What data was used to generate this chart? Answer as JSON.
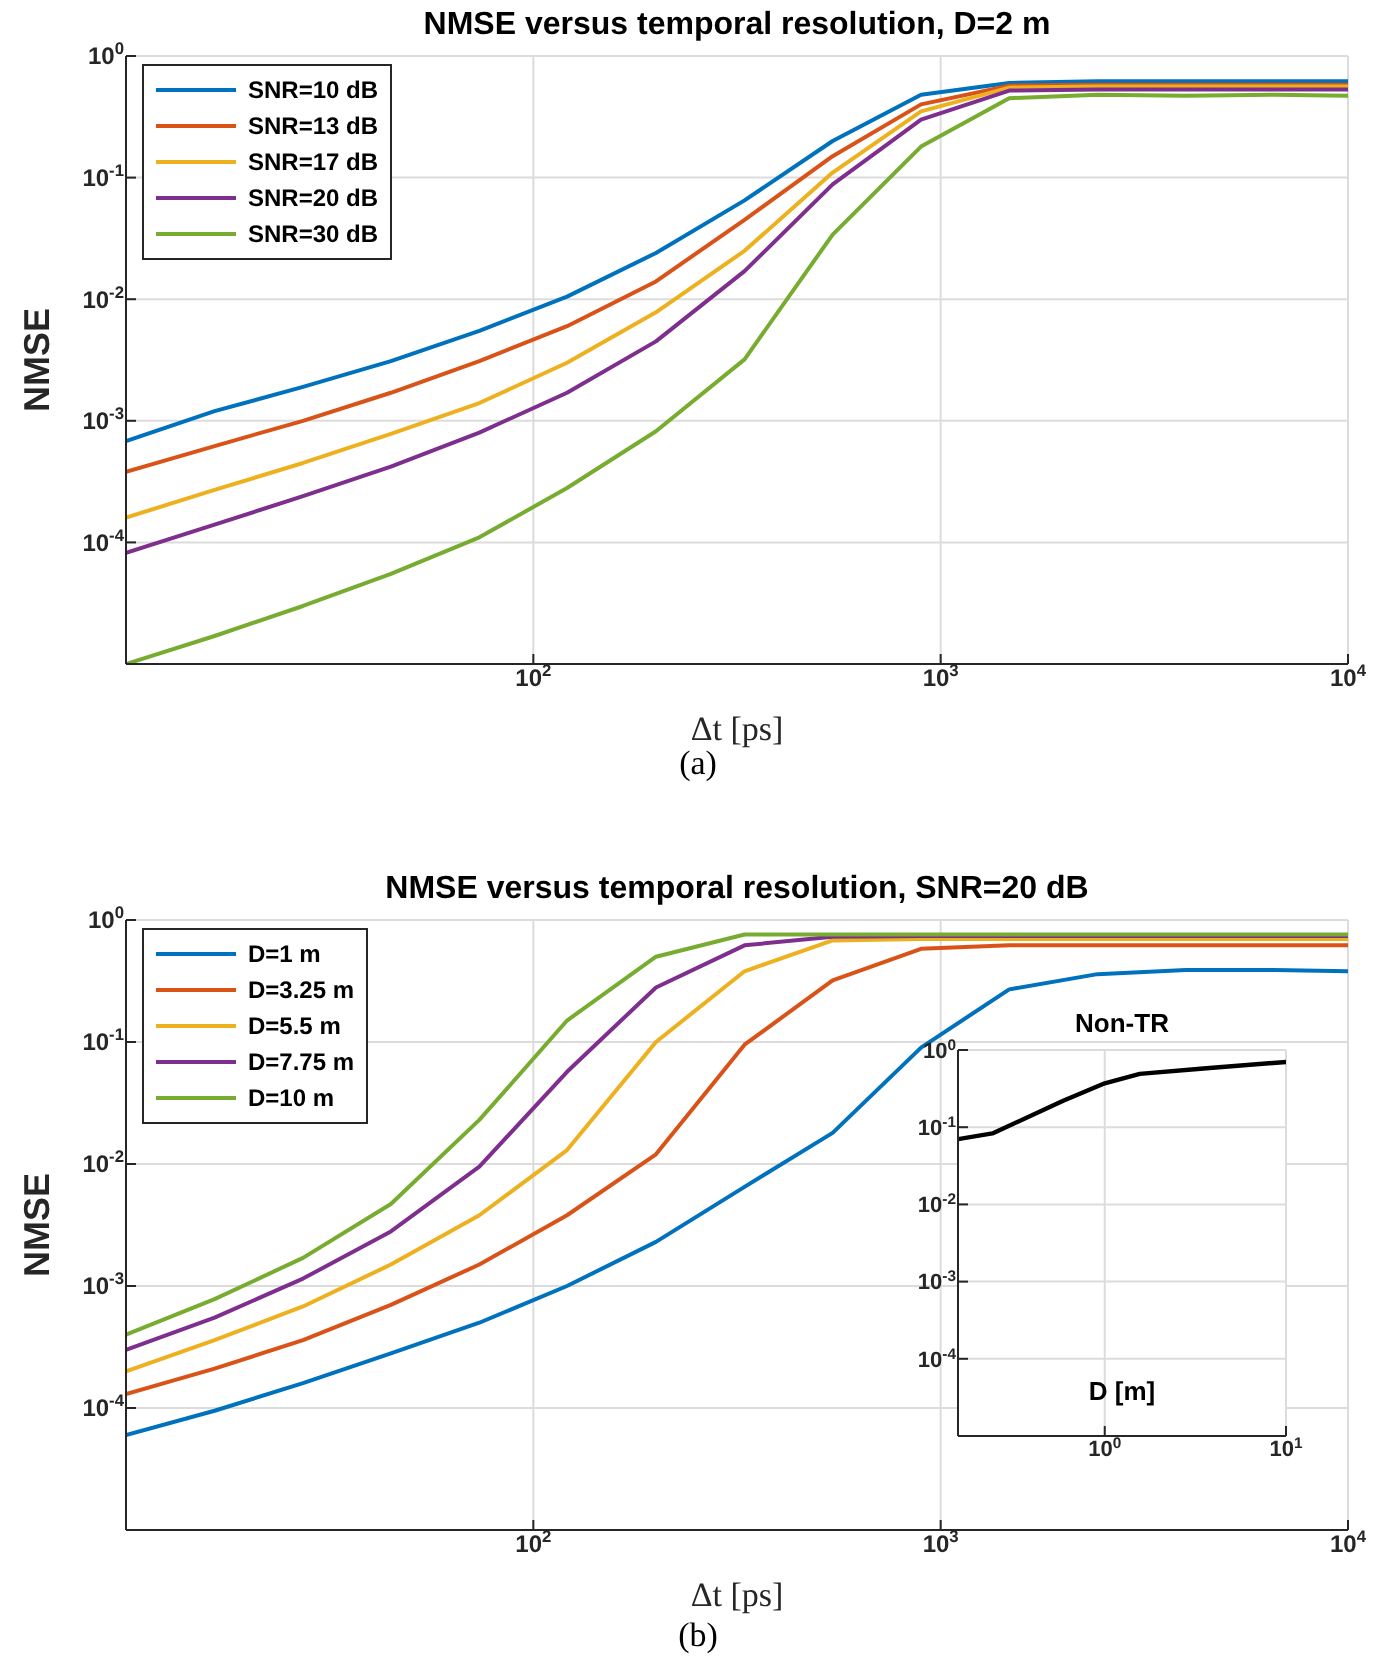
{
  "chart_data": [
    {
      "type": "line",
      "title": "NMSE versus temporal resolution, D=2 m",
      "xlabel": "Δt [ps]",
      "ylabel": "NMSE",
      "annotations": [
        "(a)"
      ],
      "log": "xy",
      "grid": true,
      "legend": "top left",
      "marker": "none",
      "x": [
        10,
        16.5,
        27.2,
        44.7,
        73.7,
        121,
        200,
        330,
        543,
        895,
        1473,
        2427,
        3998,
        6585,
        10000
      ],
      "xlim": [
        10,
        10000
      ],
      "xticks": [
        {
          "value": 100,
          "label": "10$^{2}$"
        },
        {
          "value": 1000,
          "label": "10$^{3}$"
        },
        {
          "value": 10000,
          "label": "10$^{4}$"
        }
      ],
      "ylim": [
        1e-05,
        1
      ],
      "yticks": [
        {
          "value": 1,
          "label": "10$^{0}$"
        },
        {
          "value": 0.1,
          "label": "10$^{-1}$"
        },
        {
          "value": 0.01,
          "label": "10$^{-2}$"
        },
        {
          "value": 0.001,
          "label": "10$^{-3}$"
        },
        {
          "value": 0.0001,
          "label": "10$^{-4}$"
        }
      ],
      "series": [
        {
          "name": "SNR=10 dB",
          "color": "#0072bd",
          "values": [
            0.00068,
            0.0012,
            0.0019,
            0.0031,
            0.0055,
            0.0105,
            0.024,
            0.065,
            0.2,
            0.48,
            0.6,
            0.62,
            0.62,
            0.62,
            0.62
          ]
        },
        {
          "name": "SNR=13 dB",
          "color": "#d95319",
          "values": [
            0.00038,
            0.00062,
            0.001,
            0.0017,
            0.0031,
            0.006,
            0.014,
            0.045,
            0.15,
            0.4,
            0.57,
            0.58,
            0.58,
            0.58,
            0.58
          ]
        },
        {
          "name": "SNR=17 dB",
          "color": "#edb120",
          "values": [
            0.00016,
            0.00027,
            0.00045,
            0.00078,
            0.0014,
            0.003,
            0.0078,
            0.025,
            0.11,
            0.35,
            0.55,
            0.56,
            0.56,
            0.56,
            0.56
          ]
        },
        {
          "name": "SNR=20 dB",
          "color": "#7e2f8e",
          "values": [
            8.2e-05,
            0.00014,
            0.00024,
            0.00042,
            0.0008,
            0.0017,
            0.0045,
            0.017,
            0.088,
            0.3,
            0.52,
            0.53,
            0.53,
            0.53,
            0.53
          ]
        },
        {
          "name": "SNR=30 dB",
          "color": "#77ac30",
          "values": [
            1e-05,
            1.7e-05,
            3e-05,
            5.5e-05,
            0.00011,
            0.00028,
            0.00082,
            0.0032,
            0.034,
            0.18,
            0.45,
            0.48,
            0.47,
            0.48,
            0.47
          ]
        }
      ]
    },
    {
      "type": "line",
      "title": "NMSE versus temporal resolution, SNR=20 dB",
      "xlabel": "Δt [ps]",
      "ylabel": "NMSE",
      "annotations": [
        "(b)"
      ],
      "log": "xy",
      "grid": true,
      "legend": "top left",
      "marker": "none",
      "x": [
        10,
        16.5,
        27.2,
        44.7,
        73.7,
        121,
        200,
        330,
        543,
        895,
        1473,
        2427,
        3998,
        6585,
        10000
      ],
      "xlim": [
        10,
        10000
      ],
      "xticks": [
        {
          "value": 100,
          "label": "10$^{2}$"
        },
        {
          "value": 1000,
          "label": "10$^{3}$"
        },
        {
          "value": 10000,
          "label": "10$^{4}$"
        }
      ],
      "ylim": [
        1e-05,
        1
      ],
      "yticks": [
        {
          "value": 1,
          "label": "10$^{0}$"
        },
        {
          "value": 0.1,
          "label": "10$^{-1}$"
        },
        {
          "value": 0.01,
          "label": "10$^{-2}$"
        },
        {
          "value": 0.001,
          "label": "10$^{-3}$"
        },
        {
          "value": 0.0001,
          "label": "10$^{-4}$"
        }
      ],
      "series": [
        {
          "name": "D=1 m",
          "color": "#0072bd",
          "values": [
            6e-05,
            9.5e-05,
            0.00016,
            0.00028,
            0.0005,
            0.001,
            0.0023,
            0.0065,
            0.018,
            0.09,
            0.27,
            0.36,
            0.39,
            0.39,
            0.38
          ]
        },
        {
          "name": "D=3.25 m",
          "color": "#d95319",
          "values": [
            0.00013,
            0.00021,
            0.00036,
            0.0007,
            0.0015,
            0.0038,
            0.012,
            0.095,
            0.32,
            0.58,
            0.62,
            0.62,
            0.62,
            0.62,
            0.62
          ]
        },
        {
          "name": "D=5.5 m",
          "color": "#edb120",
          "values": [
            0.0002,
            0.00036,
            0.00068,
            0.0015,
            0.0038,
            0.013,
            0.1,
            0.38,
            0.68,
            0.7,
            0.7,
            0.7,
            0.7,
            0.7,
            0.7
          ]
        },
        {
          "name": "D=7.75 m",
          "color": "#7e2f8e",
          "values": [
            0.0003,
            0.00055,
            0.00115,
            0.0028,
            0.0095,
            0.057,
            0.28,
            0.62,
            0.73,
            0.74,
            0.74,
            0.74,
            0.74,
            0.74,
            0.74
          ]
        },
        {
          "name": "D=10 m",
          "color": "#77ac30",
          "values": [
            0.0004,
            0.00078,
            0.0017,
            0.0047,
            0.023,
            0.15,
            0.5,
            0.76,
            0.76,
            0.76,
            0.76,
            0.76,
            0.76,
            0.76,
            0.76
          ]
        }
      ]
    },
    {
      "type": "line",
      "title": "Non-TR",
      "xlabel": "D [m]",
      "log": "xy",
      "grid": true,
      "marker": "none",
      "x": [
        0.155,
        0.24,
        0.59,
        1,
        1.56,
        3.64,
        10
      ],
      "xlim": [
        0.155,
        10
      ],
      "xticks": [
        {
          "value": 1,
          "label": "10$^{0}$"
        },
        {
          "value": 10,
          "label": "10$^{1}$"
        }
      ],
      "ylim": [
        1e-05,
        1
      ],
      "yticks": [
        {
          "value": 1,
          "label": "10$^{0}$"
        },
        {
          "value": 0.1,
          "label": "10$^{-1}$"
        },
        {
          "value": 0.01,
          "label": "10$^{-2}$"
        },
        {
          "value": 0.001,
          "label": "10$^{-3}$"
        },
        {
          "value": 0.0001,
          "label": "10$^{-4}$"
        }
      ],
      "series": [
        {
          "color": "#000000",
          "values": [
            0.07,
            0.083,
            0.22,
            0.37,
            0.49,
            0.58,
            0.7
          ]
        }
      ]
    }
  ]
}
